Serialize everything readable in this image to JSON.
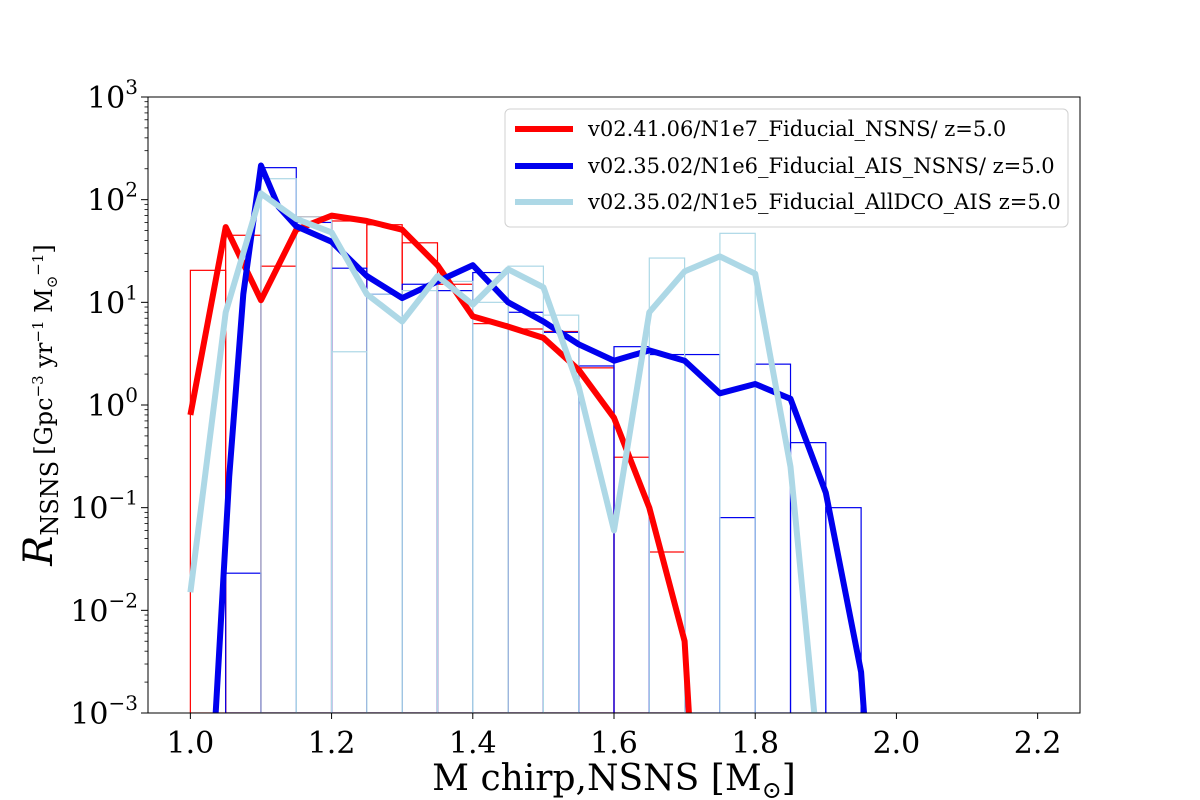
{
  "chart_data": {
    "type": "line",
    "xlabel": "M chirp,NSNS [M",
    "xlabel_sub": "⊙",
    "xlabel_end": "]",
    "ylabel_main": "R",
    "ylabel_sub": "NSNS",
    "ylabel_units": "[Gpc",
    "ylabel_exp1": "−3",
    "ylabel_mid": " yr",
    "ylabel_exp2": "−1",
    "ylabel_m": " M",
    "ylabel_msub": "⊙",
    "ylabel_exp3": "−1",
    "ylabel_close": "]",
    "xlim": [
      0.94,
      2.26
    ],
    "ylim": [
      0.001,
      1000
    ],
    "yscale": "log",
    "grid": false,
    "legend_position": "top-right",
    "x_ticks": [
      {
        "value": 1.0,
        "label": "1.0"
      },
      {
        "value": 1.2,
        "label": "1.2"
      },
      {
        "value": 1.4,
        "label": "1.4"
      },
      {
        "value": 1.6,
        "label": "1.6"
      },
      {
        "value": 1.8,
        "label": "1.8"
      },
      {
        "value": 2.0,
        "label": "2.0"
      },
      {
        "value": 2.2,
        "label": "2.2"
      }
    ],
    "y_ticks": [
      {
        "value": 1000,
        "base": "10",
        "exp": "3"
      },
      {
        "value": 100,
        "base": "10",
        "exp": "2"
      },
      {
        "value": 10,
        "base": "10",
        "exp": "1"
      },
      {
        "value": 1,
        "base": "10",
        "exp": "0"
      },
      {
        "value": 0.1,
        "base": "10",
        "exp": "−1"
      },
      {
        "value": 0.01,
        "base": "10",
        "exp": "−2"
      },
      {
        "value": 0.001,
        "base": "10",
        "exp": "−3"
      }
    ],
    "series": [
      {
        "name": "v02.41.06/N1e7_Fiducial_NSNS/ z=5.0",
        "color": "#ff0000",
        "hist_edges": [
          1.0,
          1.05,
          1.1,
          1.15,
          1.2,
          1.25,
          1.3,
          1.35,
          1.4,
          1.45,
          1.5,
          1.55,
          1.6,
          1.65,
          1.7,
          1.75
        ],
        "hist_values": [
          20.5,
          45,
          22.5,
          68,
          62,
          57,
          38,
          15,
          6.2,
          5.5,
          5.2,
          2.3,
          0.31,
          0.037,
          0.001
        ],
        "line_x": [
          1.0,
          1.05,
          1.1,
          1.15,
          1.2,
          1.25,
          1.3,
          1.35,
          1.4,
          1.45,
          1.5,
          1.55,
          1.6,
          1.65,
          1.7,
          1.707
        ],
        "line_y": [
          0.8,
          54,
          10.5,
          51,
          70,
          62,
          51,
          23,
          7.3,
          5.8,
          4.5,
          2.2,
          0.75,
          0.1,
          0.005,
          0.0008
        ]
      },
      {
        "name": "v02.35.02/N1e6_Fiducial_AIS_NSNS/ z=5.0",
        "color": "#0000ee",
        "hist_edges": [
          1.05,
          1.1,
          1.15,
          1.2,
          1.25,
          1.3,
          1.35,
          1.4,
          1.45,
          1.5,
          1.55,
          1.6,
          1.65,
          1.7,
          1.75,
          1.8,
          1.85,
          1.9,
          1.95
        ],
        "hist_values": [
          0.023,
          205,
          60,
          21.5,
          12,
          15,
          13,
          19.5,
          8,
          5.1,
          2.4,
          3.7,
          3.1,
          3.1,
          0.08,
          2.5,
          0.43,
          0.1
        ],
        "line_x": [
          1.035,
          1.055,
          1.075,
          1.1,
          1.125,
          1.15,
          1.2,
          1.25,
          1.3,
          1.35,
          1.4,
          1.45,
          1.5,
          1.55,
          1.6,
          1.65,
          1.7,
          1.75,
          1.8,
          1.85,
          1.9,
          1.95,
          1.955
        ],
        "line_y": [
          0.0008,
          0.2,
          12,
          215,
          85,
          55,
          39,
          18,
          11,
          16,
          23,
          10,
          6.5,
          3.9,
          2.7,
          3.4,
          2.7,
          1.3,
          1.6,
          1.15,
          0.14,
          0.0025,
          0.0008
        ]
      },
      {
        "name": "v02.35.02/N1e5_Fiducial_AllDCO_AIS z=5.0",
        "color": "#add8e6",
        "hist_edges": [
          1.1,
          1.15,
          1.2,
          1.25,
          1.3,
          1.35,
          1.4,
          1.45,
          1.5,
          1.55,
          1.6,
          1.65,
          1.7,
          1.75,
          1.8
        ],
        "hist_values": [
          160,
          68,
          3.3,
          12,
          13,
          16,
          10,
          22.5,
          7.5,
          0.001,
          0.001,
          27,
          0.001,
          47
        ],
        "line_x": [
          1.0,
          1.05,
          1.1,
          1.15,
          1.2,
          1.25,
          1.3,
          1.35,
          1.4,
          1.45,
          1.5,
          1.55,
          1.6,
          1.65,
          1.7,
          1.75,
          1.8,
          1.85,
          1.885
        ],
        "line_y": [
          0.015,
          8,
          115,
          65,
          48,
          12,
          6.5,
          18,
          9.5,
          21,
          14,
          1.5,
          0.06,
          8,
          20,
          28,
          19,
          0.25,
          0.0008
        ]
      }
    ]
  }
}
